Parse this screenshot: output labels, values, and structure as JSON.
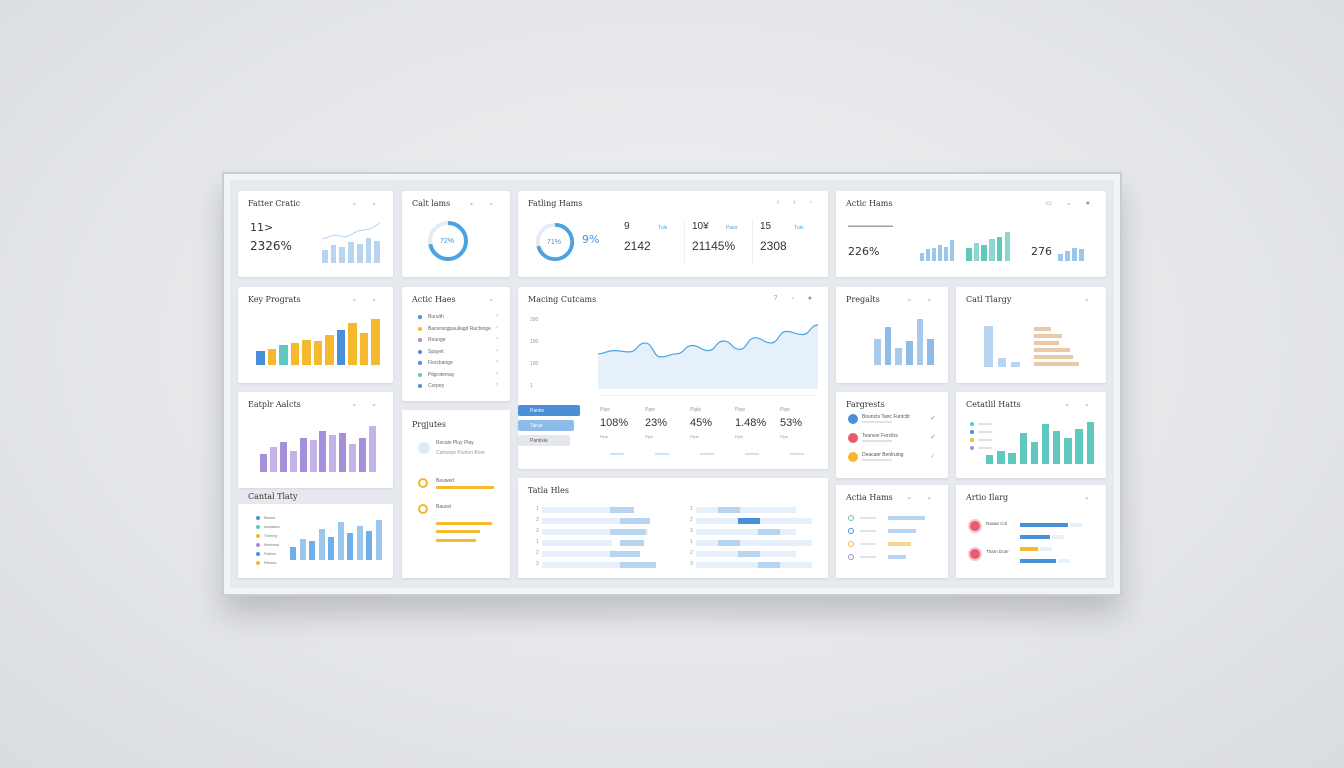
{
  "panels": {
    "p1": {
      "title": "Fatter Cratic",
      "v1": "11>",
      "v2": "2326%",
      "bars": [
        0.45,
        0.6,
        0.55,
        0.7,
        0.65,
        0.85,
        0.75
      ]
    },
    "p2": {
      "title": "Calt lams",
      "donut_value": "72%",
      "donut_fraction": 0.72
    },
    "p3": {
      "title": "Fatling Hams",
      "donut_value": "71%",
      "pct": "9%",
      "stats": [
        {
          "num": "9",
          "val": "2142",
          "sub": "Tuls"
        },
        {
          "num": "10¥",
          "val": "21145%",
          "sub": "Paes"
        },
        {
          "num": "15",
          "val": "2308",
          "sub": "Tuts"
        }
      ]
    },
    "p4": {
      "title": "Actic Hams",
      "v": "226%",
      "v2": "276",
      "bars_a": [
        0.3,
        0.45,
        0.5,
        0.6,
        0.55,
        0.8
      ],
      "bars_b": [
        0.4,
        0.55,
        0.5,
        0.7,
        0.75,
        0.9
      ],
      "bars_c": [
        0.35,
        0.5,
        0.65,
        0.6
      ]
    },
    "p5": {
      "title": "Key Prograts",
      "bars": [
        {
          "v": 0.28,
          "c": "#4a90d9"
        },
        {
          "v": 0.32,
          "c": "#f5b82e"
        },
        {
          "v": 0.4,
          "c": "#5fc9c0"
        },
        {
          "v": 0.45,
          "c": "#f5b82e"
        },
        {
          "v": 0.5,
          "c": "#f5b82e"
        },
        {
          "v": 0.48,
          "c": "#f5b82e"
        },
        {
          "v": 0.6,
          "c": "#f5b82e"
        },
        {
          "v": 0.7,
          "c": "#4a90d9"
        },
        {
          "v": 0.85,
          "c": "#f5b82e"
        },
        {
          "v": 0.65,
          "c": "#f5b82e"
        },
        {
          "v": 0.92,
          "c": "#f5b82e"
        }
      ]
    },
    "p6": {
      "title": "Actic Haes",
      "items": [
        "Buruith",
        "Bacerangpauliagd Rachinge",
        "Rounge",
        "Spayet",
        "Fiorckange",
        "Pilgrotemay",
        "Corpey"
      ]
    },
    "p7": {
      "title": "Macing Cutcams",
      "y_labels": [
        "200",
        "100",
        "100",
        "1"
      ],
      "line": [
        0.55,
        0.6,
        0.58,
        0.72,
        0.5,
        0.55,
        0.68,
        0.6,
        0.75,
        0.62,
        0.8,
        0.72,
        0.9,
        0.85,
        1.0
      ]
    },
    "p7b": {
      "btn1": "Pamie",
      "btn2": "Tarue",
      "btn3": "Pamivie",
      "stats": [
        {
          "v": "108%",
          "s": "Pipe"
        },
        {
          "v": "23%",
          "s": "Pipe"
        },
        {
          "v": "45%",
          "s": "Piple"
        },
        {
          "v": "1.48%",
          "s": "Pipe"
        },
        {
          "v": "53%",
          "s": "Pipe"
        }
      ]
    },
    "p8": {
      "title": "Pregalts",
      "bars": [
        0.55,
        0.8,
        0.35,
        0.5,
        0.95,
        0.55
      ]
    },
    "p9": {
      "title": "Catl Tlargy",
      "bars": [
        0.9,
        0.2,
        0.1
      ],
      "hbars": [
        0.3,
        0.5,
        0.45,
        0.65,
        0.7,
        0.8
      ]
    },
    "p10": {
      "title": "Eatplr Aalcts",
      "bars": [
        0.4,
        0.55,
        0.65,
        0.45,
        0.75,
        0.7,
        0.9,
        0.8,
        0.85,
        0.6,
        0.75,
        1.0
      ]
    },
    "p11": {
      "title": "Prgjutes",
      "l1": "Rocain Pluy Play",
      "l2": "Cahwrpe Punlen Bore",
      "l3": "Beuwed",
      "l4": "Bauvel"
    },
    "p12": {
      "title": "Fargrests",
      "items": [
        "Bouncts Tanc Funtcltr",
        "Teancer Fercltrs",
        "Deacaer Benlruing"
      ]
    },
    "p13": {
      "title": "Cetatlil Hatts",
      "bars": [
        0.2,
        0.3,
        0.25,
        0.7,
        0.5,
        0.9,
        0.75,
        0.6,
        0.8,
        0.95
      ]
    },
    "p14": {
      "title": "Cantal Tlaty",
      "legend": [
        "Beaxe",
        "Amstabo",
        "Thenny",
        "Bermest",
        "Parbor",
        "Rlenes"
      ],
      "bars": [
        0.3,
        0.5,
        0.45,
        0.75,
        0.55,
        0.9,
        0.65,
        0.8,
        0.7,
        0.95
      ]
    },
    "p15": {
      "title": "Tatla Hles",
      "rows": 6
    },
    "p16": {
      "title": "Actia Hams",
      "hbars": [
        0.8,
        0.6,
        0.5,
        0.4
      ]
    },
    "p17": {
      "title": "Artio Ilarg",
      "items": [
        "Rasae Col",
        "Tharn Dote"
      ],
      "hbars": [
        0.8,
        0.5,
        0.3,
        0.6
      ]
    }
  },
  "colors": {
    "accent": "#4a90d9",
    "yellow": "#f5b82e",
    "teal": "#5fc9c0",
    "purple": "#a48fd8",
    "light_blue": "#b7d4f0",
    "tan": "#e8c9a8"
  }
}
